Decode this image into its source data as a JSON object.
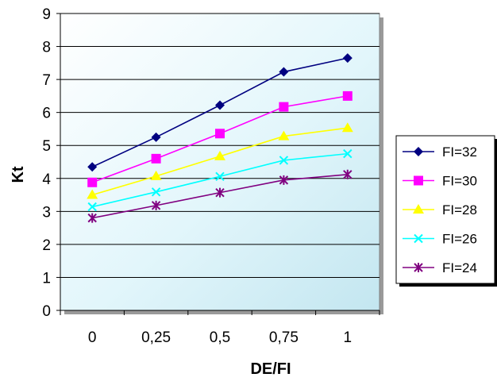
{
  "chart_data": {
    "type": "line",
    "xlabel": "DE/FI",
    "ylabel": "Kt",
    "categories": [
      "0",
      "0,25",
      "0,5",
      "0,75",
      "1"
    ],
    "ylim": [
      0,
      9
    ],
    "yticks": [
      "0",
      "1",
      "2",
      "3",
      "4",
      "5",
      "6",
      "7",
      "8",
      "9"
    ],
    "grid": "horizontal",
    "legend_position": "right",
    "series": [
      {
        "name": "FI=32",
        "values": [
          4.35,
          5.25,
          6.22,
          7.23,
          7.65
        ],
        "color": "#000080",
        "marker": "diamond"
      },
      {
        "name": "FI=30",
        "values": [
          3.88,
          4.6,
          5.36,
          6.17,
          6.5
        ],
        "color": "#FF00FF",
        "marker": "square"
      },
      {
        "name": "FI=28",
        "values": [
          3.5,
          4.07,
          4.67,
          5.28,
          5.53
        ],
        "color": "#FFFF00",
        "marker": "triangle"
      },
      {
        "name": "FI=26",
        "values": [
          3.14,
          3.59,
          4.06,
          4.55,
          4.75
        ],
        "color": "#00FFFF",
        "marker": "x"
      },
      {
        "name": "FI=24",
        "values": [
          2.8,
          3.18,
          3.57,
          3.95,
          4.12
        ],
        "color": "#800080",
        "marker": "star"
      }
    ]
  }
}
